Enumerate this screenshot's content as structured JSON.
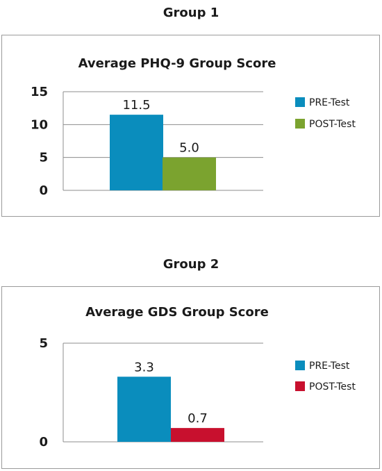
{
  "groups": [
    {
      "title": "Group 1"
    },
    {
      "title": "Group 2"
    }
  ],
  "chart_data": [
    {
      "type": "bar",
      "title": "Average PHQ-9 Group Score",
      "categories": [
        "PRE-Test",
        "POST-Test"
      ],
      "values": [
        11.5,
        5.0
      ],
      "value_labels": [
        "11.5",
        "5.0"
      ],
      "colors": [
        "#0a8dbd",
        "#7ba32f"
      ],
      "ylim": [
        0,
        15
      ],
      "yticks": [
        0,
        5,
        10,
        15
      ],
      "grid": true,
      "legend": "right",
      "xlabel": "",
      "ylabel": ""
    },
    {
      "type": "bar",
      "title": "Average GDS Group Score",
      "categories": [
        "PRE-Test",
        "POST-Test"
      ],
      "values": [
        3.3,
        0.7
      ],
      "value_labels": [
        "3.3",
        "0.7"
      ],
      "colors": [
        "#0a8dbd",
        "#c8102e"
      ],
      "ylim": [
        0,
        5
      ],
      "yticks": [
        0,
        5
      ],
      "grid": true,
      "legend": "right",
      "xlabel": "",
      "ylabel": ""
    }
  ]
}
